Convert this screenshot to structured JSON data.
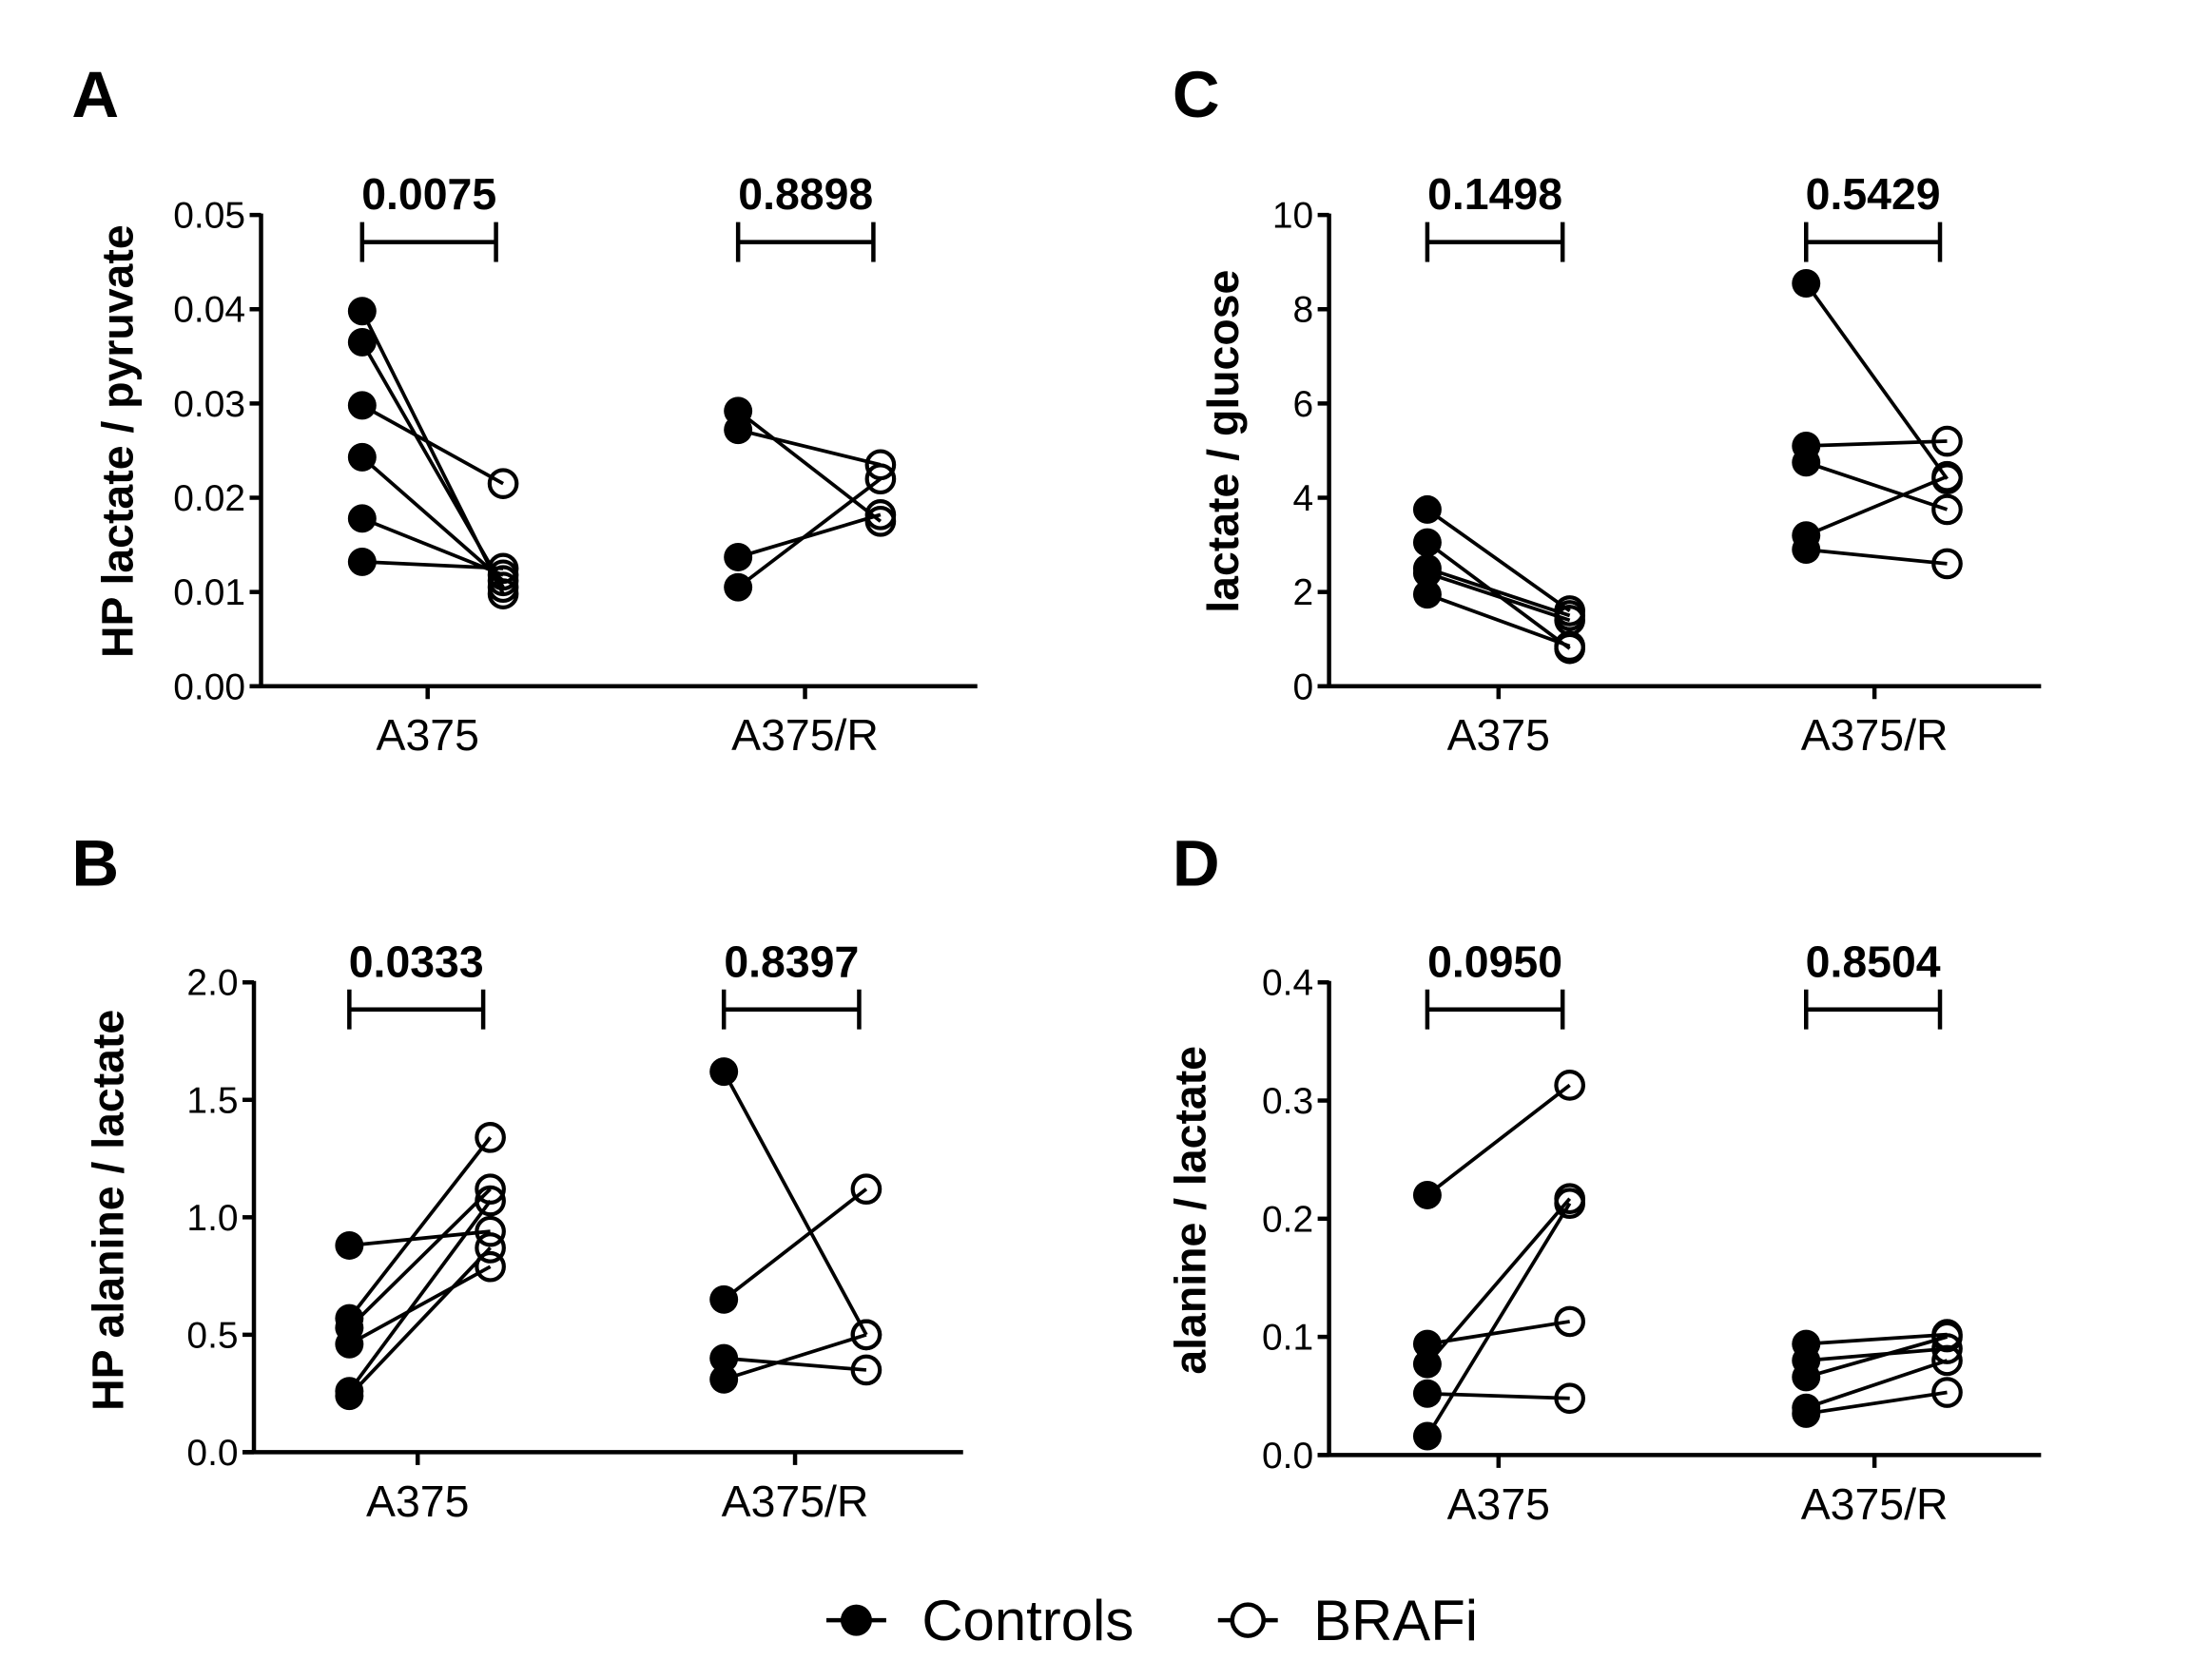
{
  "chart_data": [
    {
      "panel": "A",
      "type": "scatter",
      "subtype": "paired-dot-line",
      "ylabel": "HP lactate / pyruvate",
      "ylim": [
        0,
        0.05
      ],
      "yticks": [
        "0.00",
        "0.01",
        "0.02",
        "0.03",
        "0.04",
        "0.05"
      ],
      "ytick_values": [
        0,
        0.01,
        0.02,
        0.03,
        0.04,
        0.05
      ],
      "categories": [
        "A375",
        "A375/R"
      ],
      "p_values": [
        "0.0075",
        "0.8898"
      ],
      "pairs": [
        [
          [
            0.0398,
            0.0098
          ],
          [
            0.0365,
            0.0105
          ],
          [
            0.0298,
            0.0215
          ],
          [
            0.0243,
            0.0112
          ],
          [
            0.0178,
            0.0118
          ],
          [
            0.0132,
            0.0125
          ]
        ],
        [
          [
            0.0292,
            0.0175
          ],
          [
            0.0272,
            0.0235
          ],
          [
            0.0137,
            0.0182
          ],
          [
            0.0105,
            0.022
          ]
        ]
      ]
    },
    {
      "panel": "C",
      "type": "scatter",
      "subtype": "paired-dot-line",
      "ylabel": "lactate / glucose",
      "ylim": [
        0,
        10
      ],
      "yticks": [
        "0",
        "2",
        "4",
        "6",
        "8",
        "10"
      ],
      "ytick_values": [
        0,
        2,
        4,
        6,
        8,
        10
      ],
      "categories": [
        "A375",
        "A375/R"
      ],
      "p_values": [
        "0.1498",
        "0.5429"
      ],
      "pairs": [
        [
          [
            3.75,
            1.6
          ],
          [
            3.05,
            0.8
          ],
          [
            2.5,
            1.5
          ],
          [
            2.4,
            1.4
          ],
          [
            1.95,
            0.85
          ]
        ],
        [
          [
            8.55,
            4.4
          ],
          [
            5.1,
            5.2
          ],
          [
            4.75,
            3.75
          ],
          [
            3.2,
            4.45
          ],
          [
            2.9,
            2.6
          ]
        ]
      ]
    },
    {
      "panel": "B",
      "type": "scatter",
      "subtype": "paired-dot-line",
      "ylabel": "HP alanine / lactate",
      "ylim": [
        0,
        2.0
      ],
      "yticks": [
        "0.0",
        "0.5",
        "1.0",
        "1.5",
        "2.0"
      ],
      "ytick_values": [
        0,
        0.5,
        1.0,
        1.5,
        2.0
      ],
      "categories": [
        "A375",
        "A375/R"
      ],
      "p_values": [
        "0.0333",
        "0.8397"
      ],
      "pairs": [
        [
          [
            0.88,
            0.94
          ],
          [
            0.57,
            1.34
          ],
          [
            0.53,
            1.12
          ],
          [
            0.46,
            0.79
          ],
          [
            0.26,
            1.07
          ],
          [
            0.24,
            0.87
          ]
        ],
        [
          [
            1.62,
            0.5
          ],
          [
            0.65,
            1.12
          ],
          [
            0.4,
            0.35
          ],
          [
            0.31,
            0.5
          ]
        ]
      ]
    },
    {
      "panel": "D",
      "type": "scatter",
      "subtype": "paired-dot-line",
      "ylabel": "alanine / lactate",
      "ylim": [
        0,
        0.4
      ],
      "yticks": [
        "0.0",
        "0.1",
        "0.2",
        "0.3",
        "0.4"
      ],
      "ytick_values": [
        0,
        0.1,
        0.2,
        0.3,
        0.4
      ],
      "categories": [
        "A375",
        "A375/R"
      ],
      "p_values": [
        "0.0950",
        "0.8504"
      ],
      "pairs": [
        [
          [
            0.22,
            0.313
          ],
          [
            0.094,
            0.113
          ],
          [
            0.077,
            0.217
          ],
          [
            0.052,
            0.048
          ],
          [
            0.016,
            0.213
          ]
        ],
        [
          [
            0.094,
            0.102
          ],
          [
            0.08,
            0.09
          ],
          [
            0.066,
            0.1
          ],
          [
            0.04,
            0.08
          ],
          [
            0.035,
            0.053
          ]
        ]
      ]
    }
  ],
  "legend": {
    "placement": "bottom-center",
    "items": [
      {
        "label": "Controls",
        "marker": "filled-circle"
      },
      {
        "label": "BRAFi",
        "marker": "open-circle"
      }
    ]
  },
  "colors": {
    "ink": "#000000",
    "background": "#ffffff"
  }
}
